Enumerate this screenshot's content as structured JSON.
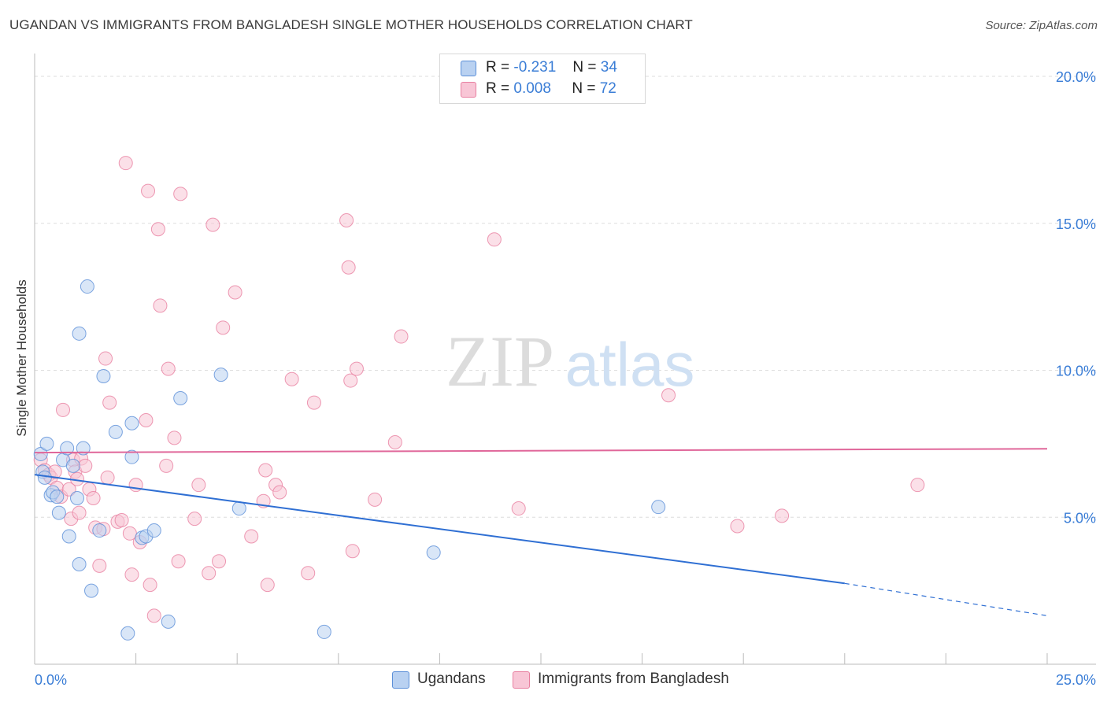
{
  "title": "UGANDAN VS IMMIGRANTS FROM BANGLADESH SINGLE MOTHER HOUSEHOLDS CORRELATION CHART",
  "source": "Source: ZipAtlas.com",
  "watermark": {
    "zip": "ZIP",
    "atlas": "atlas"
  },
  "legend": {
    "r_label": "R =",
    "n_label": "N =",
    "rows": [
      {
        "r": "-0.231",
        "n": "34"
      },
      {
        "r": "0.008",
        "n": "72"
      }
    ]
  },
  "chart_data": {
    "type": "scatter",
    "title": "UGANDAN VS IMMIGRANTS FROM BANGLADESH SINGLE MOTHER HOUSEHOLDS CORRELATION CHART",
    "xlabel": "",
    "ylabel": "Single Mother Households",
    "xlim": [
      0,
      25
    ],
    "ylim": [
      0,
      20.5
    ],
    "x_tick_labels": [
      {
        "value": 0,
        "label": "0.0%"
      },
      {
        "value": 25,
        "label": "25.0%"
      }
    ],
    "y_tick_labels": [
      {
        "value": 5,
        "label": "5.0%"
      },
      {
        "value": 10,
        "label": "10.0%"
      },
      {
        "value": 15,
        "label": "15.0%"
      },
      {
        "value": 20,
        "label": "20.0%"
      }
    ],
    "grid": true,
    "legend_position": "top-center",
    "series": [
      {
        "name": "Ugandans",
        "color": "#5b8fd8",
        "fill": "#b9d1f1",
        "r": -0.231,
        "n": 34,
        "trend": {
          "x0": 0,
          "y0": 6.45,
          "x1": 20,
          "y1": 2.75,
          "dash_to_x": 25,
          "dash_to_y": 1.65
        },
        "points": [
          [
            0.15,
            7.15
          ],
          [
            0.3,
            7.5
          ],
          [
            0.2,
            6.55
          ],
          [
            0.25,
            6.35
          ],
          [
            0.4,
            5.75
          ],
          [
            0.45,
            5.85
          ],
          [
            0.55,
            5.7
          ],
          [
            0.6,
            5.15
          ],
          [
            0.7,
            6.95
          ],
          [
            0.8,
            7.35
          ],
          [
            0.85,
            4.35
          ],
          [
            0.95,
            6.75
          ],
          [
            1.05,
            5.65
          ],
          [
            1.1,
            11.25
          ],
          [
            1.1,
            3.4
          ],
          [
            1.2,
            7.35
          ],
          [
            1.3,
            12.85
          ],
          [
            1.4,
            2.5
          ],
          [
            1.6,
            4.55
          ],
          [
            1.7,
            9.8
          ],
          [
            2.0,
            7.9
          ],
          [
            2.3,
            1.05
          ],
          [
            2.4,
            8.2
          ],
          [
            2.4,
            7.05
          ],
          [
            2.65,
            4.3
          ],
          [
            2.75,
            4.35
          ],
          [
            2.95,
            4.55
          ],
          [
            3.3,
            1.45
          ],
          [
            3.6,
            9.05
          ],
          [
            4.6,
            9.85
          ],
          [
            5.05,
            5.3
          ],
          [
            7.15,
            1.1
          ],
          [
            9.85,
            3.8
          ],
          [
            15.4,
            5.35
          ]
        ]
      },
      {
        "name": "Immigrants from Bangladesh",
        "color": "#e87fa0",
        "fill": "#f8c6d6",
        "r": 0.008,
        "n": 72,
        "trend": {
          "x0": 0,
          "y0": 7.2,
          "x1": 25,
          "y1": 7.33
        },
        "points": [
          [
            0.15,
            6.95
          ],
          [
            0.25,
            6.6
          ],
          [
            0.35,
            6.45
          ],
          [
            0.4,
            6.35
          ],
          [
            0.5,
            6.55
          ],
          [
            0.55,
            6.0
          ],
          [
            0.65,
            5.7
          ],
          [
            0.7,
            8.65
          ],
          [
            0.85,
            5.95
          ],
          [
            0.9,
            4.95
          ],
          [
            0.95,
            6.95
          ],
          [
            1.0,
            6.55
          ],
          [
            1.05,
            6.3
          ],
          [
            1.1,
            5.15
          ],
          [
            1.15,
            7.0
          ],
          [
            1.25,
            6.75
          ],
          [
            1.35,
            5.95
          ],
          [
            1.45,
            5.65
          ],
          [
            1.5,
            4.65
          ],
          [
            1.6,
            3.35
          ],
          [
            1.7,
            4.6
          ],
          [
            1.75,
            10.4
          ],
          [
            1.8,
            6.35
          ],
          [
            1.85,
            8.9
          ],
          [
            2.05,
            4.85
          ],
          [
            2.15,
            4.9
          ],
          [
            2.25,
            17.05
          ],
          [
            2.35,
            4.45
          ],
          [
            2.4,
            3.05
          ],
          [
            2.5,
            6.1
          ],
          [
            2.6,
            4.15
          ],
          [
            2.75,
            8.3
          ],
          [
            2.8,
            16.1
          ],
          [
            2.85,
            2.7
          ],
          [
            2.95,
            1.65
          ],
          [
            3.05,
            14.8
          ],
          [
            3.1,
            12.2
          ],
          [
            3.25,
            6.75
          ],
          [
            3.3,
            10.05
          ],
          [
            3.45,
            7.7
          ],
          [
            3.55,
            3.5
          ],
          [
            3.6,
            16.0
          ],
          [
            3.95,
            4.95
          ],
          [
            4.05,
            6.1
          ],
          [
            4.3,
            3.1
          ],
          [
            4.4,
            14.95
          ],
          [
            4.55,
            3.5
          ],
          [
            4.65,
            11.45
          ],
          [
            4.95,
            12.65
          ],
          [
            5.35,
            4.35
          ],
          [
            5.65,
            5.55
          ],
          [
            5.7,
            6.6
          ],
          [
            5.75,
            2.7
          ],
          [
            5.95,
            6.1
          ],
          [
            6.05,
            5.85
          ],
          [
            6.35,
            9.7
          ],
          [
            6.75,
            3.1
          ],
          [
            6.9,
            8.9
          ],
          [
            7.7,
            15.1
          ],
          [
            7.75,
            13.5
          ],
          [
            7.8,
            9.65
          ],
          [
            7.85,
            3.85
          ],
          [
            7.95,
            10.05
          ],
          [
            8.4,
            5.6
          ],
          [
            8.9,
            7.55
          ],
          [
            9.05,
            11.15
          ],
          [
            11.35,
            14.45
          ],
          [
            11.95,
            5.3
          ],
          [
            15.65,
            9.15
          ],
          [
            17.35,
            4.7
          ],
          [
            18.45,
            5.05
          ],
          [
            21.8,
            6.1
          ]
        ]
      }
    ]
  },
  "bottom_legend": [
    "Ugandans",
    "Immigrants from Bangladesh"
  ]
}
